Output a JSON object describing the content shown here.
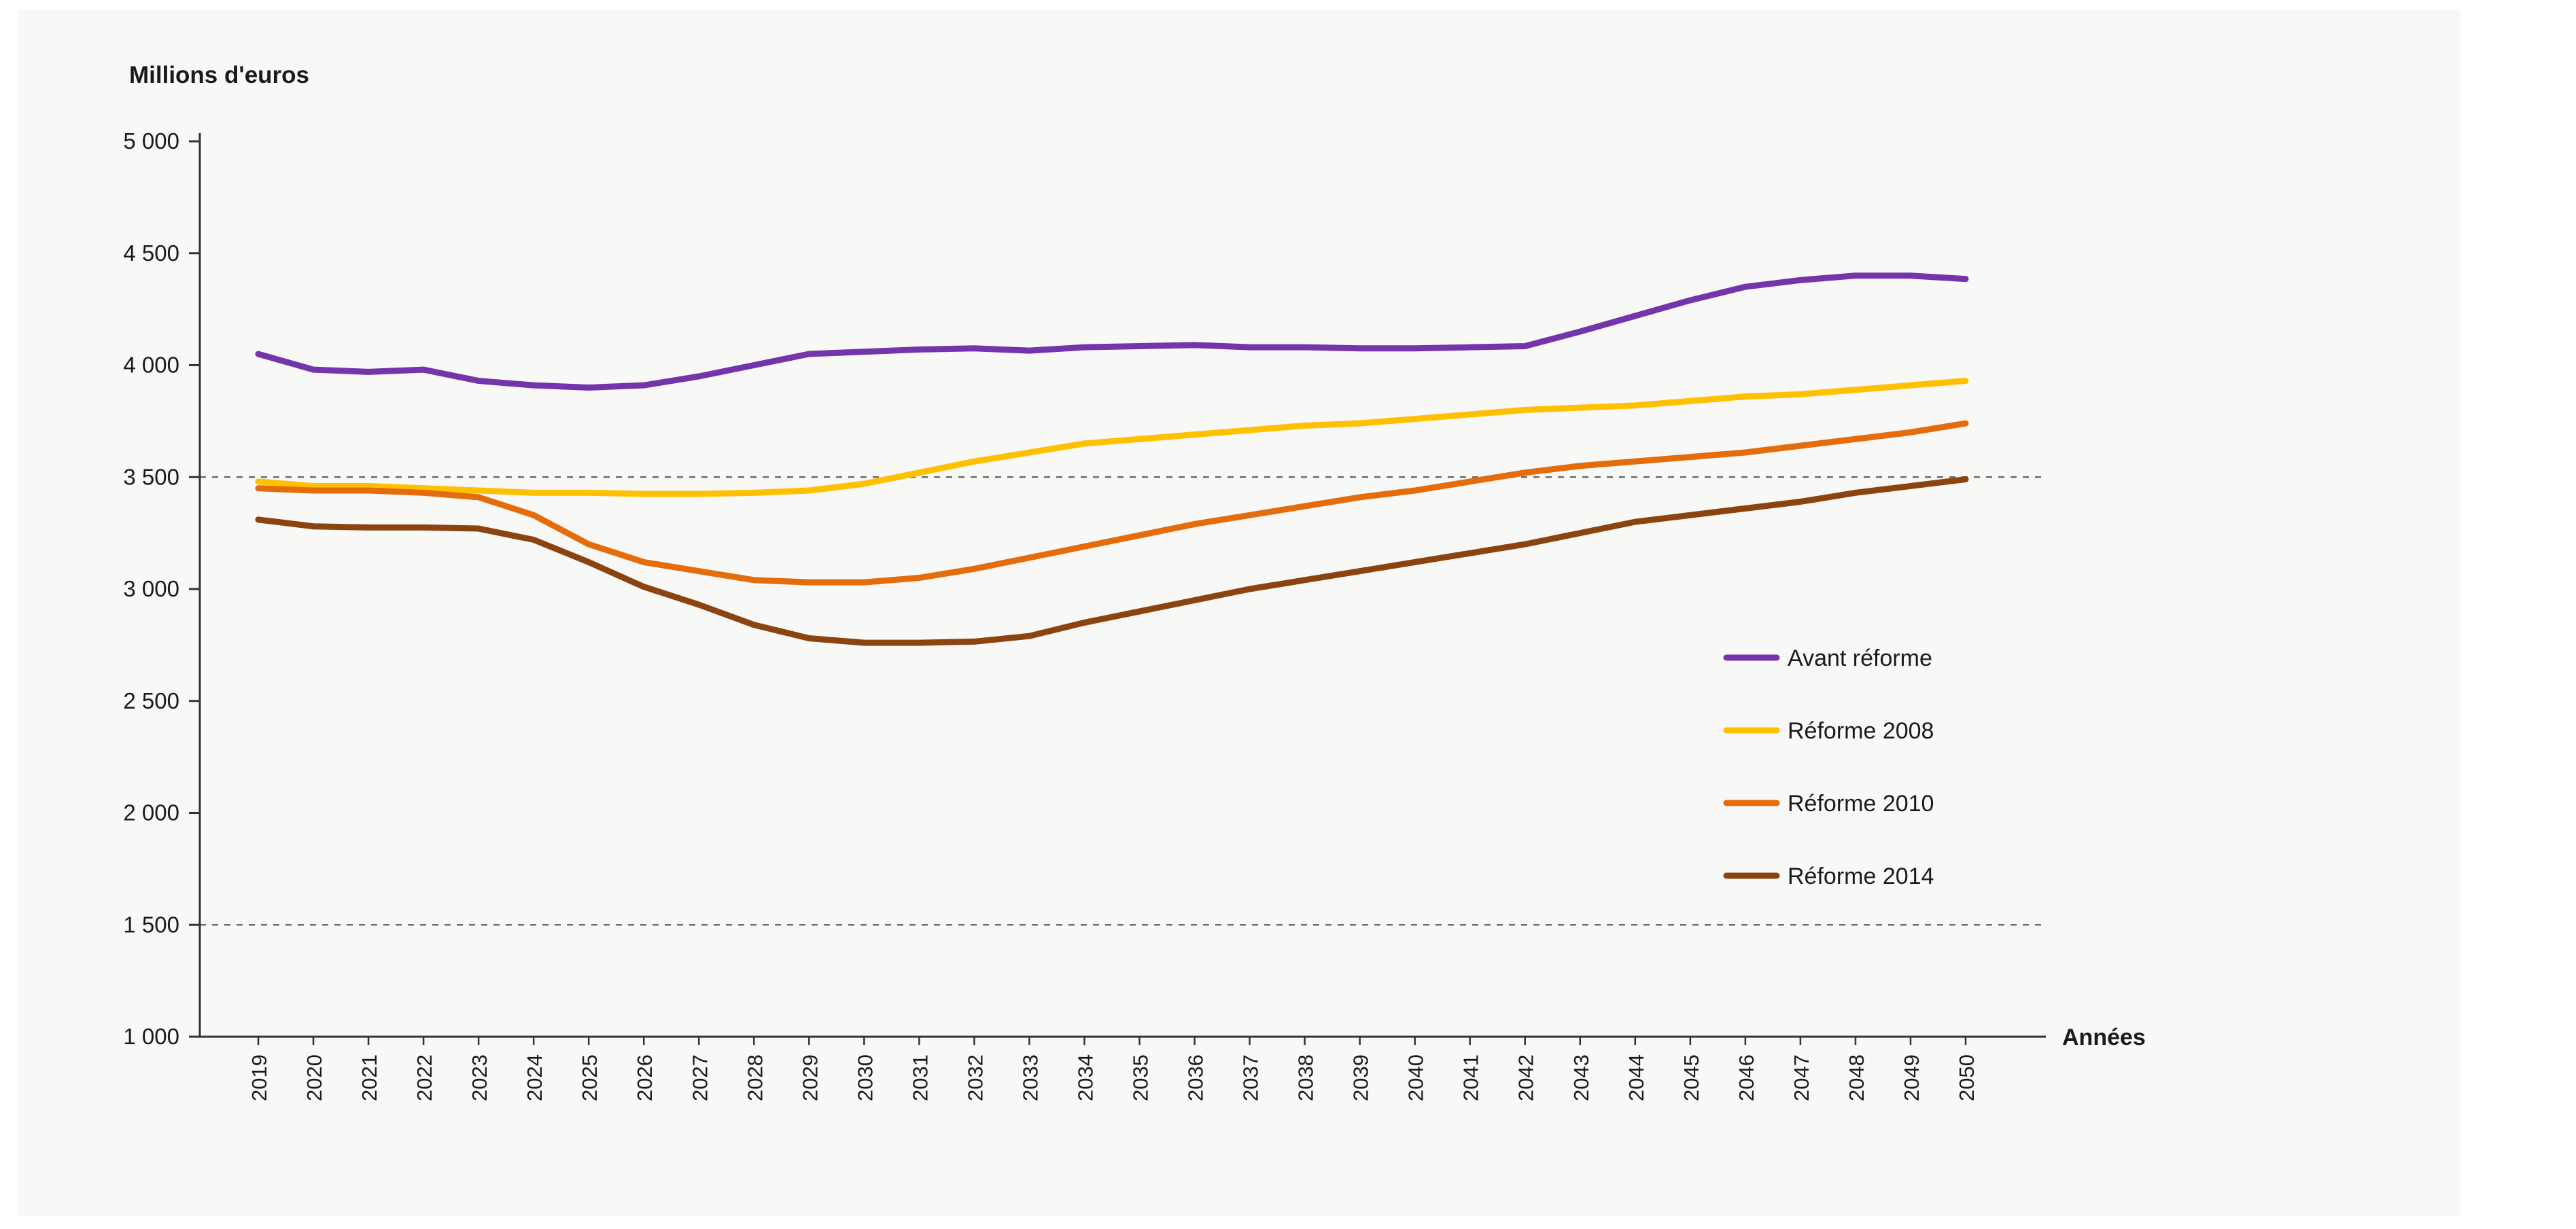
{
  "chart_data": {
    "type": "line",
    "title": "",
    "ylabel": "Millions d'euros",
    "xlabel": "Années",
    "ylim": [
      1000,
      5000
    ],
    "yticks": [
      1000,
      1500,
      2000,
      2500,
      3000,
      3500,
      4000,
      4500,
      5000
    ],
    "dashed_gridlines": [
      3500,
      1500
    ],
    "grid": "dashed reference lines at 3500 and 1500 only",
    "legend_position": "right-middle",
    "x": [
      2019,
      2020,
      2021,
      2022,
      2023,
      2024,
      2025,
      2026,
      2027,
      2028,
      2029,
      2030,
      2031,
      2032,
      2033,
      2034,
      2035,
      2036,
      2037,
      2038,
      2039,
      2040,
      2041,
      2042,
      2043,
      2044,
      2045,
      2046,
      2047,
      2048,
      2049,
      2050
    ],
    "series": [
      {
        "name": "Avant réforme",
        "color": "#7434AC",
        "values": [
          4050,
          3980,
          3970,
          3980,
          3930,
          3910,
          3900,
          3910,
          3950,
          4000,
          4050,
          4060,
          4070,
          4075,
          4065,
          4080,
          4085,
          4090,
          4080,
          4080,
          4075,
          4075,
          4080,
          4085,
          4150,
          4220,
          4290,
          4350,
          4380,
          4400,
          4400,
          4385
        ]
      },
      {
        "name": "Réforme 2008",
        "color": "#FFC000",
        "values": [
          3480,
          3460,
          3460,
          3450,
          3440,
          3430,
          3430,
          3425,
          3425,
          3430,
          3440,
          3470,
          3520,
          3570,
          3610,
          3650,
          3670,
          3690,
          3710,
          3730,
          3740,
          3760,
          3780,
          3800,
          3810,
          3820,
          3840,
          3860,
          3870,
          3890,
          3910,
          3930
        ]
      },
      {
        "name": "Réforme 2010",
        "color": "#E46C0A",
        "values": [
          3450,
          3440,
          3440,
          3430,
          3410,
          3330,
          3200,
          3120,
          3080,
          3040,
          3030,
          3030,
          3050,
          3090,
          3140,
          3190,
          3240,
          3290,
          3330,
          3370,
          3410,
          3440,
          3480,
          3520,
          3550,
          3570,
          3590,
          3610,
          3640,
          3670,
          3700,
          3740
        ]
      },
      {
        "name": "Réforme 2014",
        "color": "#8B4410",
        "values": [
          3310,
          3280,
          3275,
          3275,
          3270,
          3220,
          3120,
          3010,
          2930,
          2840,
          2780,
          2760,
          2760,
          2765,
          2790,
          2850,
          2900,
          2950,
          3000,
          3040,
          3080,
          3120,
          3160,
          3200,
          3250,
          3300,
          3330,
          3360,
          3390,
          3430,
          3460,
          3490
        ]
      }
    ]
  }
}
